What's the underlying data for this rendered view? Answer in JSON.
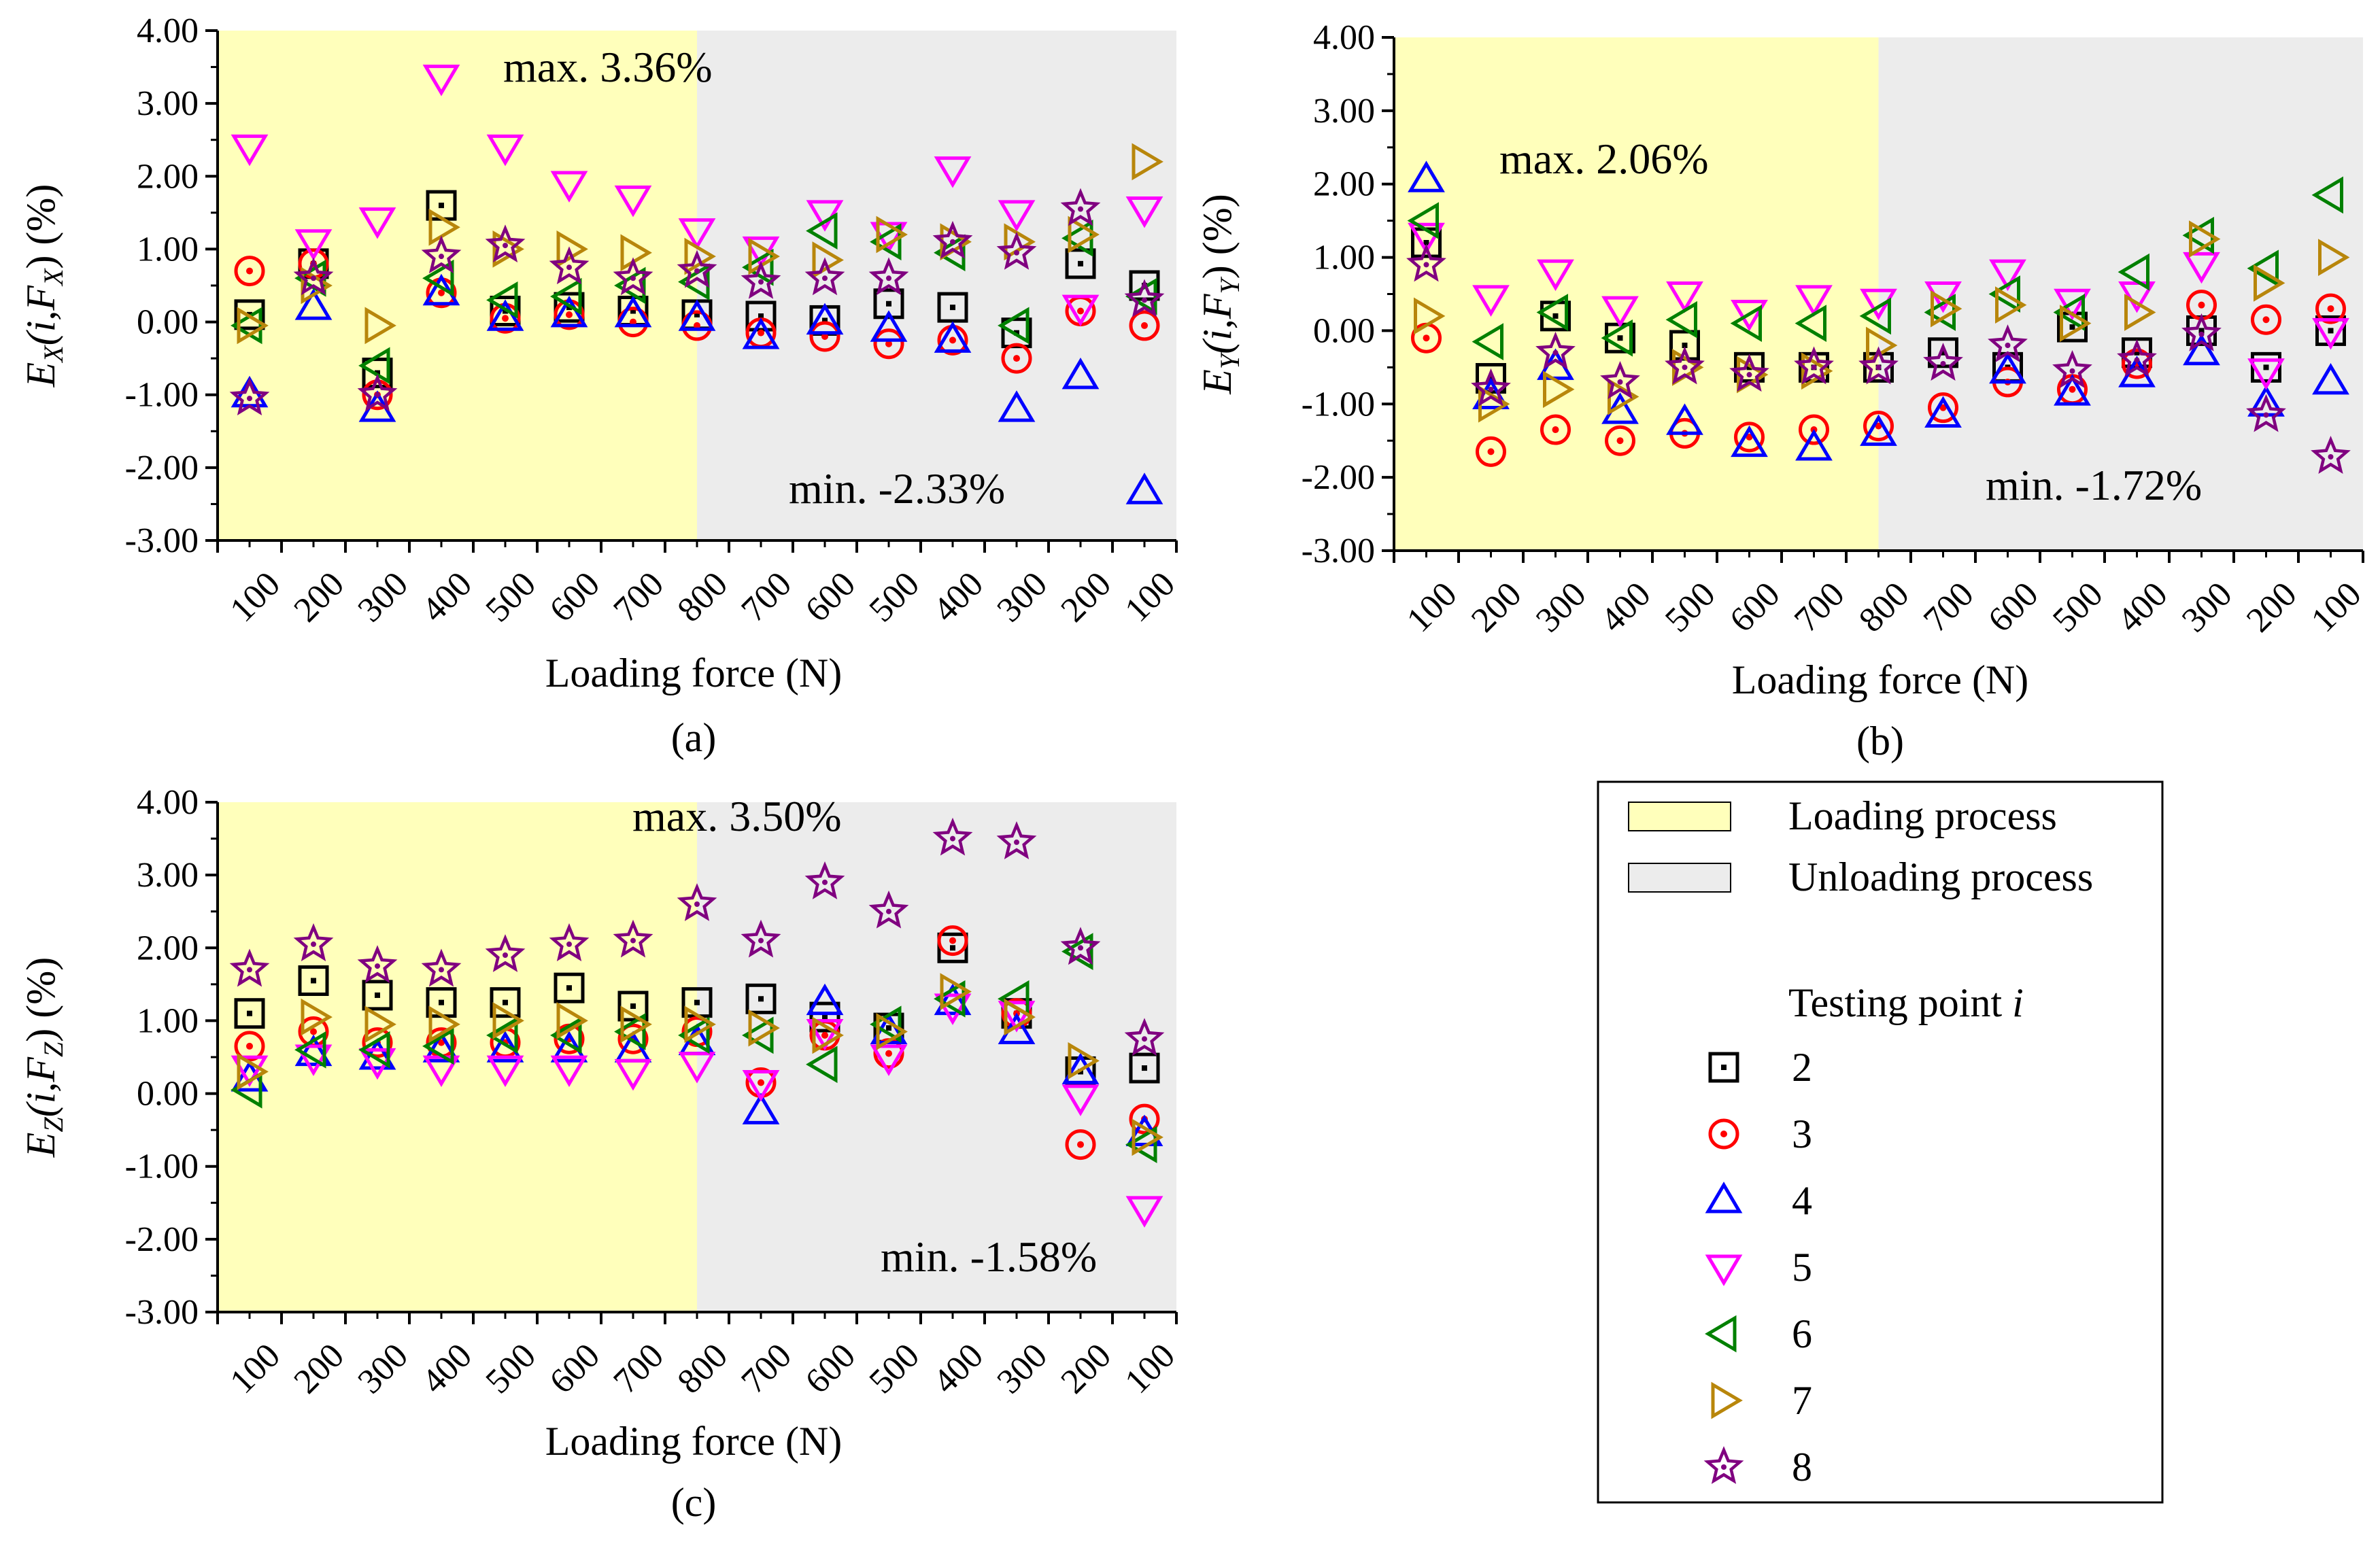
{
  "chart_data": [
    {
      "id": "a",
      "type": "scatter",
      "panel_label": "(a)",
      "xlabel": "Loading force (N)",
      "ylabel_main": "E",
      "ylabel_sub": "X",
      "ylabel_mid": "(i,F",
      "ylabel_sub2": "X",
      "ylabel_end": ") (%)",
      "categories": [
        "100",
        "200",
        "300",
        "400",
        "500",
        "600",
        "700",
        "800",
        "700",
        "600",
        "500",
        "400",
        "300",
        "200",
        "100"
      ],
      "ylim": [
        -3,
        4
      ],
      "yticks": [
        "-3.00",
        "-2.00",
        "-1.00",
        "0.00",
        "1.00",
        "2.00",
        "3.00",
        "4.00"
      ],
      "regions": {
        "loading": [
          0,
          7.5
        ],
        "unloading": [
          7.5,
          14.5
        ]
      },
      "annotations": {
        "max": "max. 3.36%",
        "min": "min. -2.33%"
      },
      "series": [
        {
          "name": "2",
          "values": [
            0.1,
            0.8,
            -0.7,
            1.6,
            0.15,
            0.2,
            0.15,
            0.1,
            0.08,
            0.02,
            0.25,
            0.2,
            -0.15,
            0.8,
            0.5
          ]
        },
        {
          "name": "3",
          "values": [
            0.7,
            0.8,
            -1.0,
            0.4,
            0.05,
            0.1,
            0.0,
            -0.05,
            -0.15,
            -0.2,
            -0.3,
            -0.25,
            -0.5,
            0.15,
            -0.05
          ]
        },
        {
          "name": "4",
          "values": [
            -1.0,
            0.2,
            -1.2,
            0.4,
            0.05,
            0.1,
            0.1,
            0.05,
            -0.2,
            0.0,
            -0.1,
            -0.25,
            -1.2,
            -0.75,
            -2.33
          ]
        },
        {
          "name": "5",
          "values": [
            2.4,
            1.1,
            1.4,
            3.36,
            2.4,
            1.9,
            1.7,
            1.25,
            1.0,
            1.5,
            1.2,
            2.1,
            1.5,
            0.2,
            1.55
          ]
        },
        {
          "name": "6",
          "values": [
            -0.05,
            0.6,
            -0.6,
            0.6,
            0.3,
            0.35,
            0.5,
            0.55,
            0.75,
            1.25,
            1.1,
            0.95,
            -0.05,
            1.15,
            0.35
          ]
        },
        {
          "name": "7",
          "values": [
            -0.05,
            0.5,
            -0.05,
            1.3,
            1.0,
            1.0,
            0.95,
            0.9,
            0.9,
            0.85,
            1.2,
            1.1,
            1.1,
            1.2,
            2.2
          ]
        },
        {
          "name": "8",
          "values": [
            -1.05,
            0.6,
            -1.0,
            0.9,
            1.05,
            0.75,
            0.6,
            0.7,
            0.55,
            0.6,
            0.6,
            1.1,
            0.95,
            1.55,
            0.3
          ]
        }
      ]
    },
    {
      "id": "b",
      "type": "scatter",
      "panel_label": "(b)",
      "xlabel": "Loading force (N)",
      "ylabel_main": "E",
      "ylabel_sub": "Y",
      "ylabel_mid": "(i,F",
      "ylabel_sub2": "Y",
      "ylabel_end": ") (%)",
      "categories": [
        "100",
        "200",
        "300",
        "400",
        "500",
        "600",
        "700",
        "800",
        "700",
        "600",
        "500",
        "400",
        "300",
        "200",
        "100"
      ],
      "ylim": [
        -3,
        4
      ],
      "yticks": [
        "-3.00",
        "-2.00",
        "-1.00",
        "0.00",
        "1.00",
        "2.00",
        "3.00",
        "4.00"
      ],
      "regions": {
        "loading": [
          0,
          7.5
        ],
        "unloading": [
          7.5,
          14.5
        ]
      },
      "annotations": {
        "max": "max. 2.06%",
        "min": "min. -1.72%"
      },
      "series": [
        {
          "name": "2",
          "values": [
            1.2,
            -0.65,
            0.2,
            -0.1,
            -0.2,
            -0.5,
            -0.5,
            -0.5,
            -0.3,
            -0.5,
            0.05,
            -0.3,
            0.0,
            -0.5,
            0.0
          ]
        },
        {
          "name": "3",
          "values": [
            -0.1,
            -1.65,
            -1.35,
            -1.5,
            -1.4,
            -1.45,
            -1.35,
            -1.3,
            -1.05,
            -0.7,
            -0.8,
            -0.45,
            0.35,
            0.15,
            0.3
          ]
        },
        {
          "name": "4",
          "values": [
            2.06,
            -0.9,
            -0.5,
            -1.1,
            -1.25,
            -1.55,
            -1.6,
            -1.4,
            -1.15,
            -0.55,
            -0.85,
            -0.6,
            -0.3,
            -1.0,
            -0.7
          ]
        },
        {
          "name": "5",
          "values": [
            1.3,
            0.45,
            0.8,
            0.3,
            0.5,
            0.25,
            0.45,
            0.4,
            0.5,
            0.8,
            0.4,
            0.5,
            0.9,
            -0.55,
            0.0
          ]
        },
        {
          "name": "6",
          "values": [
            1.5,
            -0.15,
            0.25,
            -0.1,
            0.15,
            0.1,
            0.1,
            0.2,
            0.25,
            0.5,
            0.25,
            0.8,
            1.3,
            0.85,
            1.85
          ]
        },
        {
          "name": "7",
          "values": [
            0.2,
            -1.0,
            -0.8,
            -0.9,
            -0.5,
            -0.6,
            -0.55,
            -0.2,
            0.3,
            0.35,
            0.1,
            0.25,
            1.25,
            0.65,
            1.0
          ]
        },
        {
          "name": "8",
          "values": [
            0.9,
            -0.8,
            -0.3,
            -0.7,
            -0.5,
            -0.6,
            -0.5,
            -0.5,
            -0.45,
            -0.2,
            -0.55,
            -0.4,
            -0.05,
            -1.15,
            -1.72
          ]
        }
      ]
    },
    {
      "id": "c",
      "type": "scatter",
      "panel_label": "(c)",
      "xlabel": "Loading force (N)",
      "ylabel_main": "E",
      "ylabel_sub": "Z",
      "ylabel_mid": "(i,F",
      "ylabel_sub2": "Z",
      "ylabel_end": ") (%)",
      "categories": [
        "100",
        "200",
        "300",
        "400",
        "500",
        "600",
        "700",
        "800",
        "700",
        "600",
        "500",
        "400",
        "300",
        "200",
        "100"
      ],
      "ylim": [
        -3,
        4
      ],
      "yticks": [
        "-3.00",
        "-2.00",
        "-1.00",
        "0.00",
        "1.00",
        "2.00",
        "3.00",
        "4.00"
      ],
      "regions": {
        "loading": [
          0,
          7.5
        ],
        "unloading": [
          7.5,
          14.5
        ]
      },
      "annotations": {
        "max": "max. 3.50%",
        "min": "min. -1.58%"
      },
      "series": [
        {
          "name": "2",
          "values": [
            1.1,
            1.55,
            1.35,
            1.25,
            1.25,
            1.45,
            1.2,
            1.25,
            1.3,
            1.05,
            0.9,
            2.0,
            1.1,
            0.3,
            0.35
          ]
        },
        {
          "name": "3",
          "values": [
            0.65,
            0.85,
            0.7,
            0.7,
            0.7,
            0.75,
            0.75,
            0.85,
            0.15,
            0.8,
            0.55,
            2.1,
            1.1,
            -0.7,
            -0.35
          ]
        },
        {
          "name": "4",
          "values": [
            0.2,
            0.55,
            0.5,
            0.6,
            0.6,
            0.6,
            0.6,
            0.7,
            -0.25,
            1.25,
            0.85,
            1.25,
            0.85,
            0.3,
            -0.55
          ]
        },
        {
          "name": "5",
          "values": [
            0.35,
            0.5,
            0.45,
            0.35,
            0.35,
            0.35,
            0.3,
            0.4,
            0.15,
            0.85,
            0.5,
            1.2,
            1.1,
            -0.05,
            -1.58
          ]
        },
        {
          "name": "6",
          "values": [
            0.05,
            0.6,
            0.6,
            0.65,
            0.8,
            0.8,
            0.85,
            0.8,
            0.8,
            0.4,
            0.95,
            1.3,
            1.3,
            1.95,
            -0.7
          ]
        },
        {
          "name": "7",
          "values": [
            0.3,
            1.05,
            0.95,
            0.95,
            1.0,
            1.0,
            0.95,
            0.95,
            0.9,
            0.8,
            0.85,
            1.4,
            1.05,
            0.45,
            -0.6
          ]
        },
        {
          "name": "8",
          "values": [
            1.7,
            2.05,
            1.75,
            1.7,
            1.9,
            2.05,
            2.1,
            2.6,
            2.1,
            2.9,
            2.5,
            3.5,
            3.45,
            2.0,
            0.75
          ]
        }
      ]
    }
  ],
  "legend": {
    "loading": "Loading process",
    "unloading": "Unloading process",
    "title_prefix": "Testing point ",
    "title_var": "i",
    "items": [
      {
        "name": "2",
        "marker": "square",
        "color": "#000000"
      },
      {
        "name": "3",
        "marker": "circle",
        "color": "#ff0000"
      },
      {
        "name": "4",
        "marker": "triangle-up",
        "color": "#0000ff"
      },
      {
        "name": "5",
        "marker": "triangle-down",
        "color": "#ff00ff"
      },
      {
        "name": "6",
        "marker": "triangle-left",
        "color": "#008000"
      },
      {
        "name": "7",
        "marker": "triangle-right",
        "color": "#b8860b"
      },
      {
        "name": "8",
        "marker": "star",
        "color": "#800080"
      }
    ],
    "colors": {
      "loading": "#ffffbb",
      "unloading": "#ececec"
    }
  }
}
